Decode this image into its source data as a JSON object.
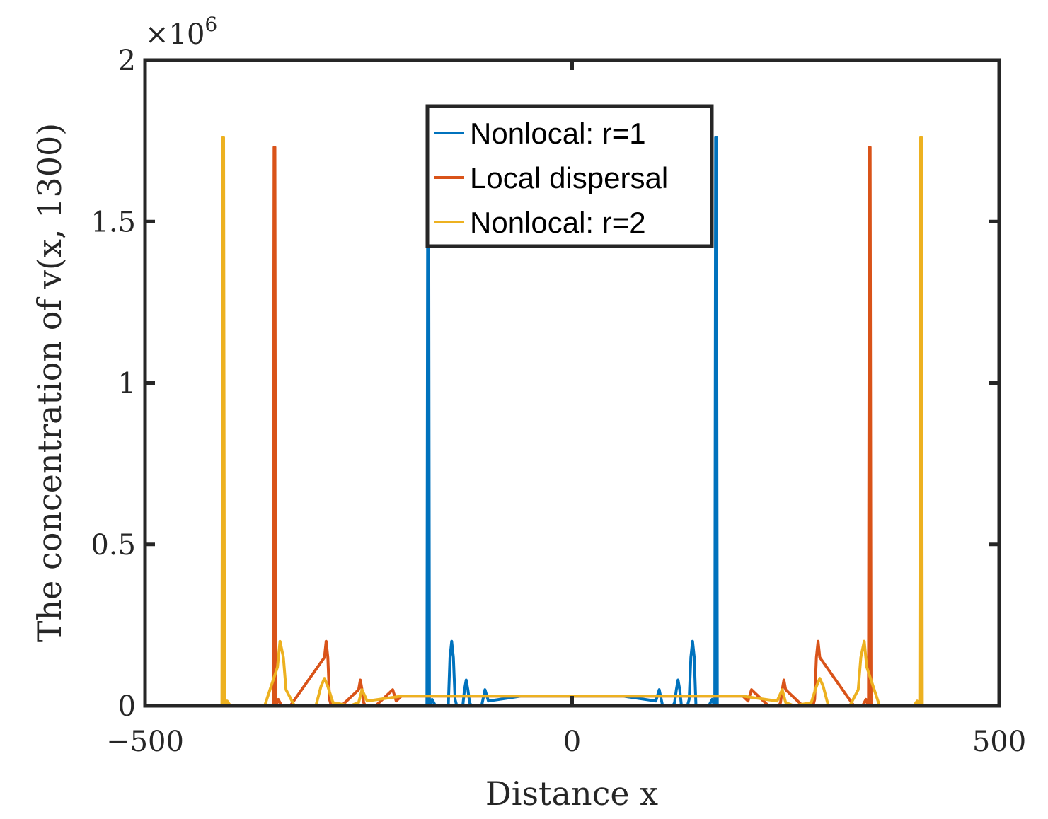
{
  "chart_data": {
    "type": "line",
    "title": "",
    "xlabel": "Distance x",
    "ylabel": "The concentration of v(x, 1300)",
    "xlim": [
      -500,
      500
    ],
    "ylim": [
      0,
      2000000
    ],
    "xticks": [
      -500,
      0,
      500
    ],
    "xtick_labels": [
      "−500",
      "0",
      "500"
    ],
    "yticks": [
      0,
      500000,
      1000000,
      1500000,
      2000000
    ],
    "ytick_labels": [
      "0",
      "0.5",
      "1",
      "1.5",
      "2"
    ],
    "y_exponent_label": "×10",
    "y_exponent": "6",
    "grid": false,
    "legend_position": "top-center",
    "series": [
      {
        "name": "Nonlocal: r=1",
        "color": "#0072BD",
        "x": [
          -500,
          -172,
          -170,
          -169,
          -168,
          -167,
          -166,
          -164,
          -160,
          -145,
          -143,
          -141,
          -139,
          -137,
          -135,
          -128,
          -126,
          -124,
          -122,
          -120,
          -118,
          -106,
          -102,
          -98,
          -60,
          -20,
          0,
          20,
          60,
          98,
          102,
          106,
          118,
          120,
          122,
          124,
          126,
          128,
          135,
          137,
          139,
          141,
          143,
          145,
          160,
          164,
          166,
          167,
          168,
          169,
          170,
          172,
          500
        ],
        "y": [
          0,
          0,
          0,
          1760000,
          1760000,
          0,
          5000,
          20000,
          0,
          0,
          150000,
          200000,
          150000,
          20000,
          0,
          0,
          50000,
          80000,
          50000,
          10000,
          0,
          0,
          50000,
          15000,
          30000,
          30000,
          30000,
          30000,
          30000,
          15000,
          50000,
          0,
          0,
          10000,
          50000,
          80000,
          50000,
          0,
          0,
          20000,
          150000,
          200000,
          150000,
          0,
          0,
          20000,
          5000,
          0,
          1760000,
          1760000,
          0,
          0,
          0
        ]
      },
      {
        "name": "Local dispersal",
        "color": "#D95319",
        "x": [
          -500,
          -352,
          -350,
          -349,
          -348,
          -347,
          -346,
          -344,
          -340,
          -330,
          -290,
          -288,
          -286,
          -284,
          -282,
          -270,
          -250,
          -248,
          -246,
          -244,
          -242,
          -230,
          -210,
          -206,
          -200,
          -150,
          -100,
          -50,
          0,
          50,
          100,
          150,
          200,
          206,
          210,
          230,
          242,
          244,
          246,
          248,
          250,
          270,
          282,
          284,
          286,
          288,
          290,
          330,
          340,
          344,
          346,
          347,
          348,
          349,
          350,
          352,
          500
        ],
        "y": [
          0,
          0,
          0,
          1730000,
          1730000,
          0,
          5000,
          20000,
          0,
          0,
          150000,
          200000,
          150000,
          20000,
          0,
          0,
          50000,
          80000,
          50000,
          10000,
          0,
          0,
          50000,
          15000,
          30000,
          30000,
          30000,
          30000,
          30000,
          30000,
          30000,
          30000,
          30000,
          15000,
          50000,
          0,
          0,
          10000,
          50000,
          80000,
          50000,
          0,
          0,
          20000,
          150000,
          200000,
          150000,
          0,
          0,
          20000,
          5000,
          0,
          1730000,
          1730000,
          0,
          0,
          0
        ]
      },
      {
        "name": "Nonlocal: r=2",
        "color": "#EDB120",
        "x": [
          -500,
          -412,
          -410,
          -409,
          -408,
          -407,
          -406,
          -404,
          -400,
          -360,
          -345,
          -342,
          -338,
          -335,
          -325,
          -300,
          -294,
          -290,
          -286,
          -280,
          -260,
          -250,
          -246,
          -240,
          -200,
          -150,
          -100,
          -50,
          0,
          50,
          100,
          150,
          200,
          240,
          246,
          250,
          260,
          280,
          286,
          290,
          294,
          300,
          325,
          335,
          338,
          342,
          345,
          360,
          400,
          404,
          406,
          407,
          408,
          409,
          410,
          412,
          500
        ],
        "y": [
          0,
          0,
          0,
          1760000,
          1760000,
          0,
          5000,
          15000,
          0,
          0,
          120000,
          200000,
          150000,
          50000,
          0,
          0,
          60000,
          85000,
          60000,
          10000,
          0,
          10000,
          50000,
          15000,
          30000,
          30000,
          30000,
          30000,
          30000,
          30000,
          30000,
          30000,
          30000,
          15000,
          50000,
          10000,
          0,
          10000,
          60000,
          85000,
          60000,
          0,
          0,
          50000,
          150000,
          200000,
          120000,
          0,
          0,
          15000,
          5000,
          0,
          1760000,
          1760000,
          0,
          0,
          0
        ]
      }
    ]
  }
}
